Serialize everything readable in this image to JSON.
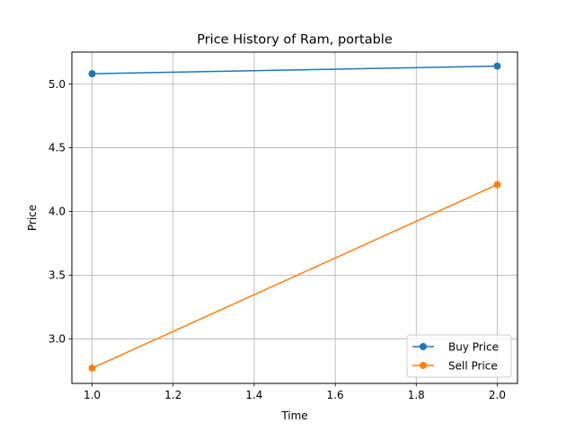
{
  "chart_data": {
    "type": "line",
    "title": "Price History of Ram, portable",
    "xlabel": "Time",
    "ylabel": "Price",
    "xlim": [
      0.95,
      2.05
    ],
    "ylim": [
      2.65,
      5.25
    ],
    "xticks": [
      1.0,
      1.2,
      1.4,
      1.6,
      1.8,
      2.0
    ],
    "xtick_labels": [
      "1.0",
      "1.2",
      "1.4",
      "1.6",
      "1.8",
      "2.0"
    ],
    "yticks": [
      3.0,
      3.5,
      4.0,
      4.5,
      5.0
    ],
    "ytick_labels": [
      "3.0",
      "3.5",
      "4.0",
      "4.5",
      "5.0"
    ],
    "grid": true,
    "legend_position": "lower-right",
    "x": [
      1.0,
      2.0
    ],
    "series": [
      {
        "name": "Buy Price",
        "color": "#1f77b4",
        "marker": "circle",
        "values": [
          5.08,
          5.14
        ]
      },
      {
        "name": "Sell Price",
        "color": "#ff7f0e",
        "marker": "circle",
        "values": [
          2.77,
          4.21
        ]
      }
    ]
  }
}
